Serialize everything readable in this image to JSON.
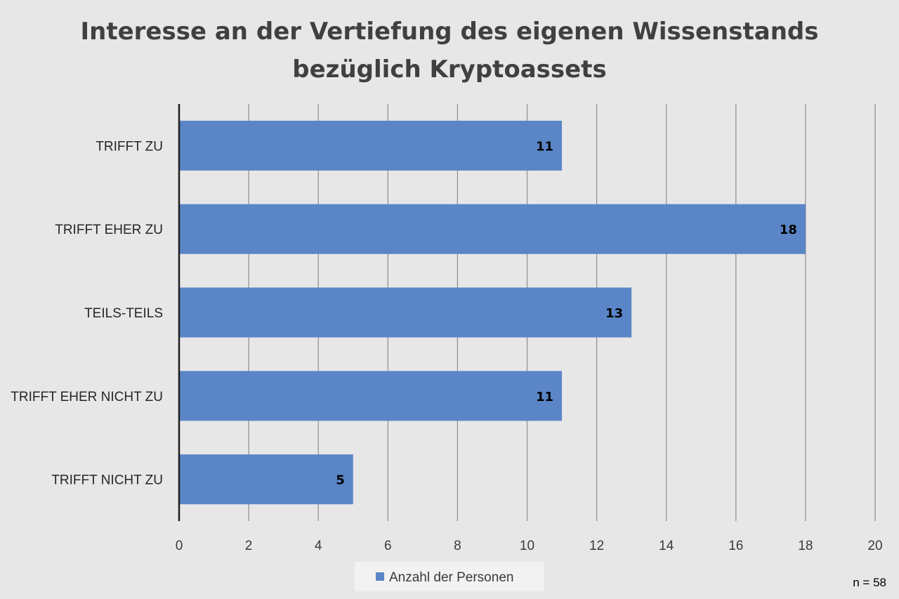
{
  "chart_data": {
    "type": "bar",
    "orientation": "horizontal",
    "title": "Interesse an der Vertiefung des eigenen Wissenstands bezüglich Kryptoassets",
    "title_lines": [
      "Interesse an der Vertiefung des eigenen Wissenstands",
      "bezüglich Kryptoassets"
    ],
    "categories": [
      "TRIFFT ZU",
      "TRIFFT EHER ZU",
      "TEILS-TEILS",
      "TRIFFT EHER NICHT ZU",
      "TRIFFT NICHT ZU"
    ],
    "series": [
      {
        "name": "Anzahl der Personen",
        "values": [
          11,
          18,
          13,
          11,
          5
        ],
        "color": "#5a86c8"
      }
    ],
    "xlim": [
      0,
      20
    ],
    "x_ticks": [
      0,
      2,
      4,
      6,
      8,
      10,
      12,
      14,
      16,
      18,
      20
    ],
    "grid": true,
    "legend_position": "bottom",
    "note": "n = 58",
    "colors": {
      "background": "#e7e7e7",
      "grid": "#8c8c8c",
      "axis": "#1f1f1f",
      "legend_box": "#f2f2f2"
    }
  }
}
